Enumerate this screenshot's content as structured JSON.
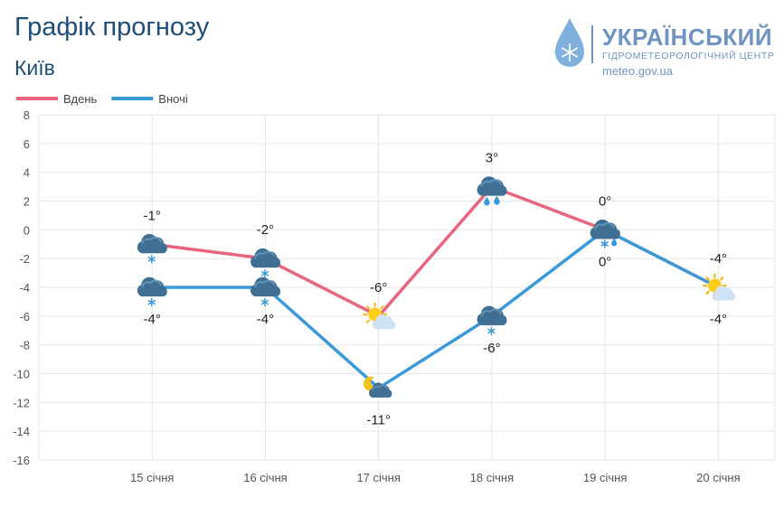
{
  "header": {
    "title": "Графік прогнозу",
    "city": "Київ"
  },
  "logo": {
    "name": "УКРАЇНСЬКИЙ",
    "subtitle": "ГІДРОМЕТЕОРОЛОГІЧНИЙ ЦЕНТР",
    "url": "meteo.gov.ua",
    "icon": "water-drop-snowflake-icon"
  },
  "chart_data": {
    "type": "line",
    "categories": [
      "15 січня",
      "16 січня",
      "17 січня",
      "18 січня",
      "19 січня",
      "20 січня"
    ],
    "series": [
      {
        "name": "Вдень",
        "color": "#e8647f",
        "values": [
          -1,
          -2,
          -6,
          3,
          0,
          -4
        ],
        "labels": [
          "-1°",
          "-2°",
          "-6°",
          "3°",
          "0°",
          "-4°"
        ],
        "icons": [
          "cloud-snow-icon",
          "cloud-snow-icon",
          "sun-cloud-icon",
          "cloud-rain-icon",
          "cloud-rain-snow-icon",
          "sun-cloud-icon"
        ]
      },
      {
        "name": "Вночі",
        "color": "#3a9ad9",
        "values": [
          -4,
          -4,
          -11,
          -6,
          0,
          -4
        ],
        "labels": [
          "-4°",
          "-4°",
          "-11°",
          "-6°",
          "0°",
          "-4°"
        ],
        "icons": [
          "cloud-snow-icon",
          "cloud-snow-icon",
          "moon-cloud-icon",
          "cloud-snow-icon",
          "cloud-rain-snow-icon",
          "sun-cloud-icon"
        ]
      }
    ],
    "ylim": [
      -16,
      8
    ],
    "yticks": [
      8,
      6,
      4,
      2,
      0,
      -2,
      -4,
      -6,
      -8,
      -10,
      -12,
      -14,
      -16
    ],
    "grid": true,
    "legend": "top-left"
  }
}
